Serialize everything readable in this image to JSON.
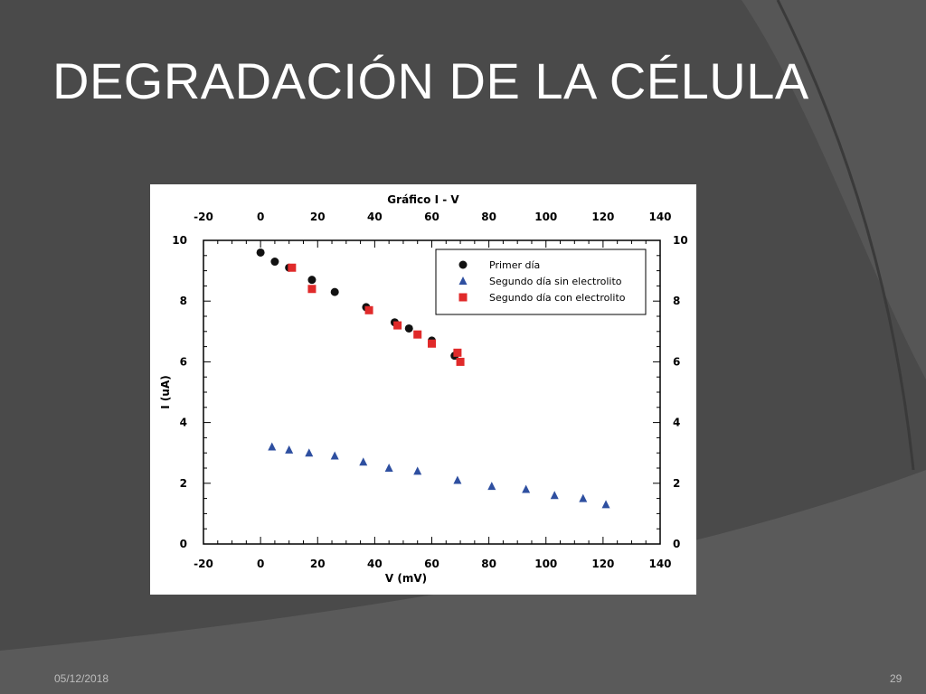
{
  "slide": {
    "title": "DEGRADACIÓN DE LA CÉLULA",
    "date": "05/12/2018",
    "page": "29"
  },
  "colors": {
    "background": "#4a4a4a",
    "series_black": "#111111",
    "series_blue": "#2e4fa0",
    "series_red": "#e02a2a"
  },
  "chart_data": {
    "type": "scatter",
    "title": "Gráfico I - V",
    "xlabel": "V (mV)",
    "ylabel": "I (uA)",
    "xlim": [
      -20,
      140
    ],
    "ylim": [
      0,
      10
    ],
    "xticks": [
      -20,
      0,
      20,
      40,
      60,
      80,
      100,
      120,
      140
    ],
    "yticks": [
      0,
      2,
      4,
      6,
      8,
      10
    ],
    "grid": false,
    "legend_position": "top-right",
    "series": [
      {
        "name": "Primer día",
        "marker": "circle",
        "color": "#111111",
        "points": [
          [
            0,
            9.6
          ],
          [
            5,
            9.3
          ],
          [
            10,
            9.1
          ],
          [
            18,
            8.7
          ],
          [
            26,
            8.3
          ],
          [
            37,
            7.8
          ],
          [
            47,
            7.3
          ],
          [
            52,
            7.1
          ],
          [
            60,
            6.7
          ],
          [
            68,
            6.2
          ]
        ]
      },
      {
        "name": "Segundo día sin electrolito",
        "marker": "triangle",
        "color": "#2e4fa0",
        "points": [
          [
            4,
            3.2
          ],
          [
            10,
            3.1
          ],
          [
            17,
            3.0
          ],
          [
            26,
            2.9
          ],
          [
            36,
            2.7
          ],
          [
            45,
            2.5
          ],
          [
            55,
            2.4
          ],
          [
            69,
            2.1
          ],
          [
            81,
            1.9
          ],
          [
            93,
            1.8
          ],
          [
            103,
            1.6
          ],
          [
            113,
            1.5
          ],
          [
            121,
            1.3
          ]
        ]
      },
      {
        "name": "Segundo día con electrolito",
        "marker": "square",
        "color": "#e02a2a",
        "points": [
          [
            11,
            9.1
          ],
          [
            18,
            8.4
          ],
          [
            38,
            7.7
          ],
          [
            48,
            7.2
          ],
          [
            55,
            6.9
          ],
          [
            60,
            6.6
          ],
          [
            69,
            6.3
          ],
          [
            70,
            6.0
          ]
        ]
      }
    ]
  }
}
